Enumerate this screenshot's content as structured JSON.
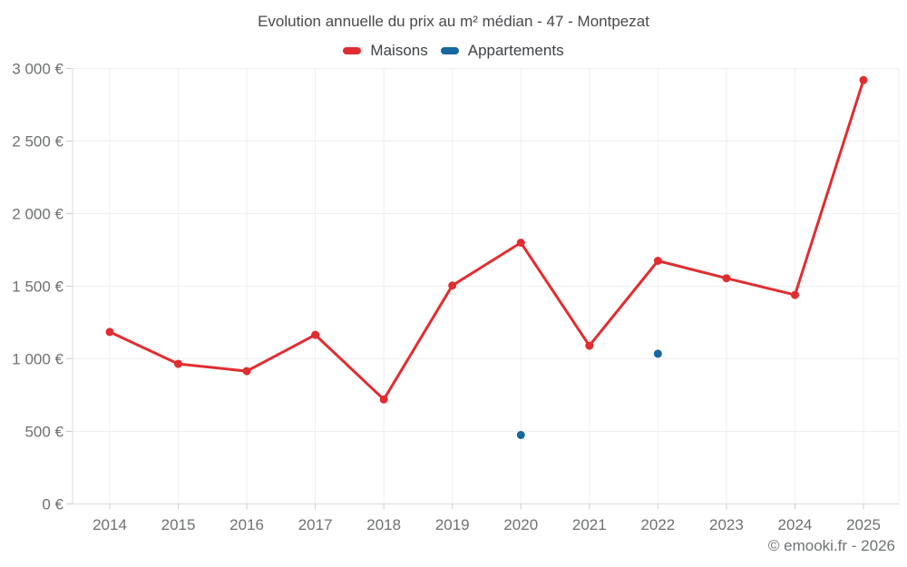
{
  "title": "Evolution annuelle du prix au m² médian - 47 - Montpezat",
  "footer": "© emooki.fr - 2026",
  "colors": {
    "maisons": "#e12d30",
    "appartements": "#1668a0",
    "grid": "#efefef",
    "axis": "#dbdbdb",
    "tick": "#cdcdcd",
    "tick_label": "#6e7173",
    "title_text": "#47494c",
    "legend_text": "#3e4245"
  },
  "chart_data": {
    "type": "line",
    "title": "Evolution annuelle du prix au m² médian - 47 - Montpezat",
    "categories": [
      "2014",
      "2015",
      "2016",
      "2017",
      "2018",
      "2019",
      "2020",
      "2021",
      "2022",
      "2023",
      "2024",
      "2025"
    ],
    "series": [
      {
        "name": "Maisons",
        "color": "#e12d30",
        "mode": "line+markers",
        "values": [
          1185,
          965,
          915,
          1165,
          720,
          1505,
          1800,
          1090,
          1675,
          1555,
          1440,
          2920
        ]
      },
      {
        "name": "Appartements",
        "color": "#1668a0",
        "mode": "markers",
        "values": [
          null,
          null,
          null,
          null,
          null,
          null,
          475,
          null,
          1035,
          null,
          null,
          null
        ]
      }
    ],
    "xlabel": "",
    "ylabel": "",
    "ylim": [
      0,
      3000
    ],
    "ytick_step": 500,
    "ytick_labels": [
      "0 €",
      "500 €",
      "1 000 €",
      "1 500 €",
      "2 000 €",
      "2 500 €",
      "3 000 €"
    ],
    "grid": true,
    "legend_position": "top",
    "currency": "€"
  }
}
